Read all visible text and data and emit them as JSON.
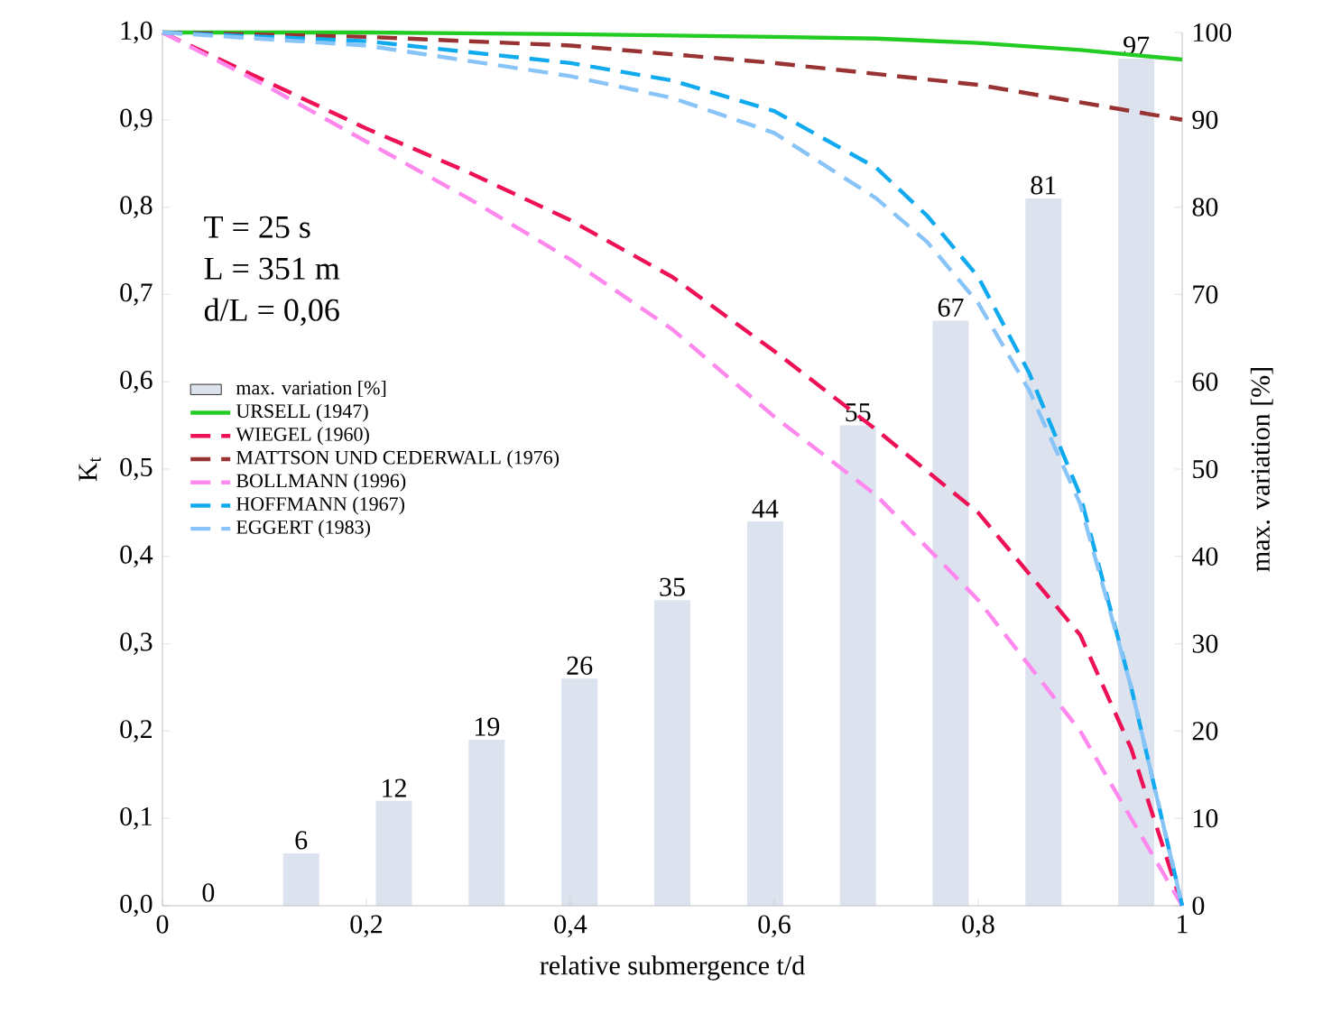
{
  "chart_data": {
    "type": "line",
    "xlabel": "relative submergence t/d",
    "ylabel": "K$_{t}$",
    "y2label": "max. variation [%]",
    "annotations": [
      "T = 25 s",
      "L = 351 m",
      "d/L = 0,06"
    ],
    "xlim": [
      0,
      1
    ],
    "xticks": [
      0,
      {
        "value": 0.2,
        "label": "0,2"
      },
      {
        "value": 0.4,
        "label": "0,4"
      },
      {
        "value": 0.6,
        "label": "0,6"
      },
      {
        "value": 0.8,
        "label": "0,8"
      },
      1
    ],
    "ylim": [
      0,
      1
    ],
    "yticks": [
      {
        "value": 0,
        "label": "0,0"
      },
      {
        "value": 0.1,
        "label": "0,1"
      },
      {
        "value": 0.2,
        "label": "0,2"
      },
      {
        "value": 0.3,
        "label": "0,3"
      },
      {
        "value": 0.4,
        "label": "0,4"
      },
      {
        "value": 0.5,
        "label": "0,5"
      },
      {
        "value": 0.6,
        "label": "0,6"
      },
      {
        "value": 0.7,
        "label": "0,7"
      },
      {
        "value": 0.8,
        "label": "0,8"
      },
      {
        "value": 0.9,
        "label": "0,9"
      },
      {
        "value": 1,
        "label": "1,0"
      }
    ],
    "y2lim": [
      0,
      100
    ],
    "y2ticks": [
      0,
      10,
      20,
      30,
      40,
      50,
      60,
      70,
      80,
      90,
      100
    ],
    "legend": "left",
    "marker": "none",
    "series": [
      {
        "name": "max. variation [%]",
        "type": "bar",
        "axis": "y2",
        "color": "#dce3ef",
        "x": [
          0.045,
          0.136,
          0.227,
          0.318,
          0.409,
          0.5,
          0.591,
          0.682,
          0.773,
          0.864,
          0.955
        ],
        "values": [
          0,
          6,
          12,
          19,
          26,
          35,
          44,
          55,
          67,
          81,
          97
        ],
        "value_labels": [
          "0",
          "6",
          "12",
          "19",
          "26",
          "35",
          "44",
          "55",
          "67",
          "81",
          "97"
        ]
      },
      {
        "name": "URSELL (1947)",
        "color": "#22cc22",
        "line_style": "solid",
        "x": [
          0,
          0.2,
          0.4,
          0.6,
          0.7,
          0.8,
          0.9,
          1
        ],
        "values": [
          1,
          1,
          0.998,
          0.995,
          0.993,
          0.988,
          0.98,
          0.969
        ]
      },
      {
        "name": "WIEGEL (1960)",
        "color": "#ee1155",
        "line_style": "dashed",
        "x": [
          0,
          0.1,
          0.2,
          0.3,
          0.4,
          0.5,
          0.6,
          0.7,
          0.8,
          0.9,
          0.95,
          1
        ],
        "values": [
          1,
          0.945,
          0.89,
          0.84,
          0.785,
          0.72,
          0.635,
          0.545,
          0.45,
          0.31,
          0.18,
          0
        ]
      },
      {
        "name": "MATTSON UND CEDERWALL (1976)",
        "color": "#993333",
        "line_style": "dashed",
        "x": [
          0,
          0.2,
          0.4,
          0.6,
          0.8,
          0.9,
          1
        ],
        "values": [
          1,
          0.995,
          0.985,
          0.965,
          0.94,
          0.92,
          0.9
        ]
      },
      {
        "name": "BOLLMANN (1996)",
        "color": "#ff88ee",
        "line_style": "dashed",
        "x": [
          0,
          0.1,
          0.2,
          0.3,
          0.4,
          0.5,
          0.6,
          0.7,
          0.8,
          0.9,
          1
        ],
        "values": [
          1,
          0.94,
          0.875,
          0.81,
          0.74,
          0.66,
          0.56,
          0.47,
          0.35,
          0.2,
          0
        ]
      },
      {
        "name": "HOFFMANN (1967)",
        "color": "#11aaee",
        "line_style": "dashed",
        "x": [
          0,
          0.2,
          0.4,
          0.5,
          0.6,
          0.7,
          0.75,
          0.8,
          0.85,
          0.9,
          0.95,
          1
        ],
        "values": [
          1,
          0.99,
          0.965,
          0.945,
          0.91,
          0.845,
          0.79,
          0.72,
          0.61,
          0.47,
          0.25,
          0
        ]
      },
      {
        "name": "EGGERT (1983)",
        "color": "#88c4f8",
        "line_style": "dashed",
        "x": [
          0,
          0.2,
          0.4,
          0.5,
          0.6,
          0.7,
          0.75,
          0.8,
          0.85,
          0.9,
          0.95,
          1
        ],
        "values": [
          1,
          0.985,
          0.95,
          0.925,
          0.885,
          0.81,
          0.76,
          0.69,
          0.59,
          0.46,
          0.25,
          0
        ]
      }
    ]
  }
}
